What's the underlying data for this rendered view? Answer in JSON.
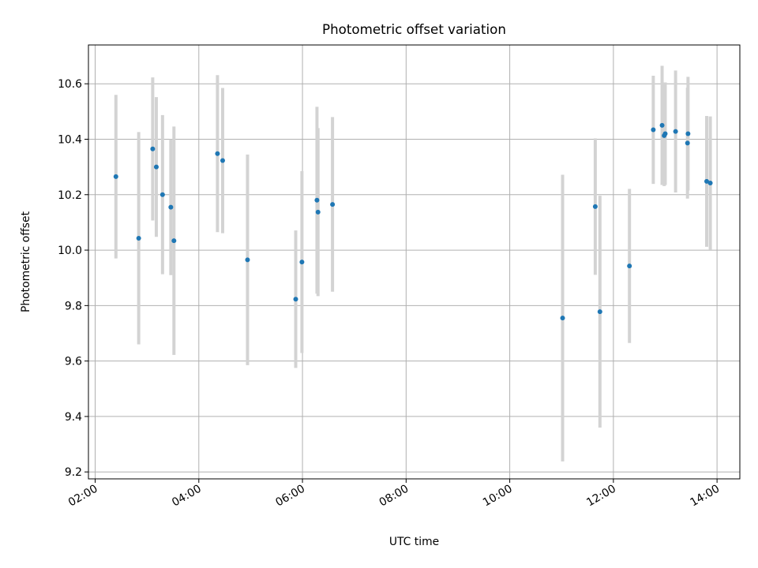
{
  "chart_data": {
    "type": "scatter",
    "title": "Photometric offset variation",
    "xlabel": "UTC time",
    "ylabel": "Photometric offset",
    "x_ticks": [
      {
        "value": 2.0,
        "label": "02:00"
      },
      {
        "value": 4.0,
        "label": "04:00"
      },
      {
        "value": 6.0,
        "label": "06:00"
      },
      {
        "value": 8.0,
        "label": "08:00"
      },
      {
        "value": 10.0,
        "label": "10:00"
      },
      {
        "value": 12.0,
        "label": "12:00"
      },
      {
        "value": 14.0,
        "label": "14:00"
      }
    ],
    "y_ticks": [
      {
        "value": 9.2,
        "label": "9.2"
      },
      {
        "value": 9.4,
        "label": "9.4"
      },
      {
        "value": 9.6,
        "label": "9.6"
      },
      {
        "value": 9.8,
        "label": "9.8"
      },
      {
        "value": 10.0,
        "label": "10.0"
      },
      {
        "value": 10.2,
        "label": "10.2"
      },
      {
        "value": 10.4,
        "label": "10.4"
      },
      {
        "value": 10.6,
        "label": "10.6"
      }
    ],
    "xlim": [
      1.87,
      14.44
    ],
    "ylim": [
      9.175,
      10.74
    ],
    "grid": true,
    "marker_color": "#1f77b4",
    "errorbar_color": "#d3d3d3",
    "points": [
      {
        "x": 2.4,
        "y": 10.265,
        "err": 0.295
      },
      {
        "x": 2.84,
        "y": 10.043,
        "err": 0.383
      },
      {
        "x": 3.11,
        "y": 10.365,
        "err": 0.258
      },
      {
        "x": 3.18,
        "y": 10.3,
        "err": 0.252
      },
      {
        "x": 3.3,
        "y": 10.2,
        "err": 0.287
      },
      {
        "x": 3.46,
        "y": 10.155,
        "err": 0.245
      },
      {
        "x": 3.52,
        "y": 10.034,
        "err": 0.412
      },
      {
        "x": 4.36,
        "y": 10.348,
        "err": 0.283
      },
      {
        "x": 4.46,
        "y": 10.323,
        "err": 0.262
      },
      {
        "x": 4.94,
        "y": 9.965,
        "err": 0.38
      },
      {
        "x": 5.87,
        "y": 9.823,
        "err": 0.248
      },
      {
        "x": 5.99,
        "y": 9.957,
        "err": 0.328
      },
      {
        "x": 6.28,
        "y": 10.18,
        "err": 0.337
      },
      {
        "x": 6.3,
        "y": 10.137,
        "err": 0.303
      },
      {
        "x": 6.58,
        "y": 10.165,
        "err": 0.315
      },
      {
        "x": 11.02,
        "y": 9.755,
        "err": 0.517
      },
      {
        "x": 11.65,
        "y": 10.157,
        "err": 0.246
      },
      {
        "x": 11.74,
        "y": 9.778,
        "err": 0.418
      },
      {
        "x": 12.31,
        "y": 9.943,
        "err": 0.278
      },
      {
        "x": 12.77,
        "y": 10.434,
        "err": 0.195
      },
      {
        "x": 12.94,
        "y": 10.45,
        "err": 0.215
      },
      {
        "x": 12.98,
        "y": 10.413,
        "err": 0.182
      },
      {
        "x": 13.0,
        "y": 10.42,
        "err": 0.185
      },
      {
        "x": 13.2,
        "y": 10.428,
        "err": 0.22
      },
      {
        "x": 13.43,
        "y": 10.386,
        "err": 0.2
      },
      {
        "x": 13.44,
        "y": 10.42,
        "err": 0.205
      },
      {
        "x": 13.8,
        "y": 10.248,
        "err": 0.236
      },
      {
        "x": 13.87,
        "y": 10.242,
        "err": 0.24
      }
    ]
  }
}
